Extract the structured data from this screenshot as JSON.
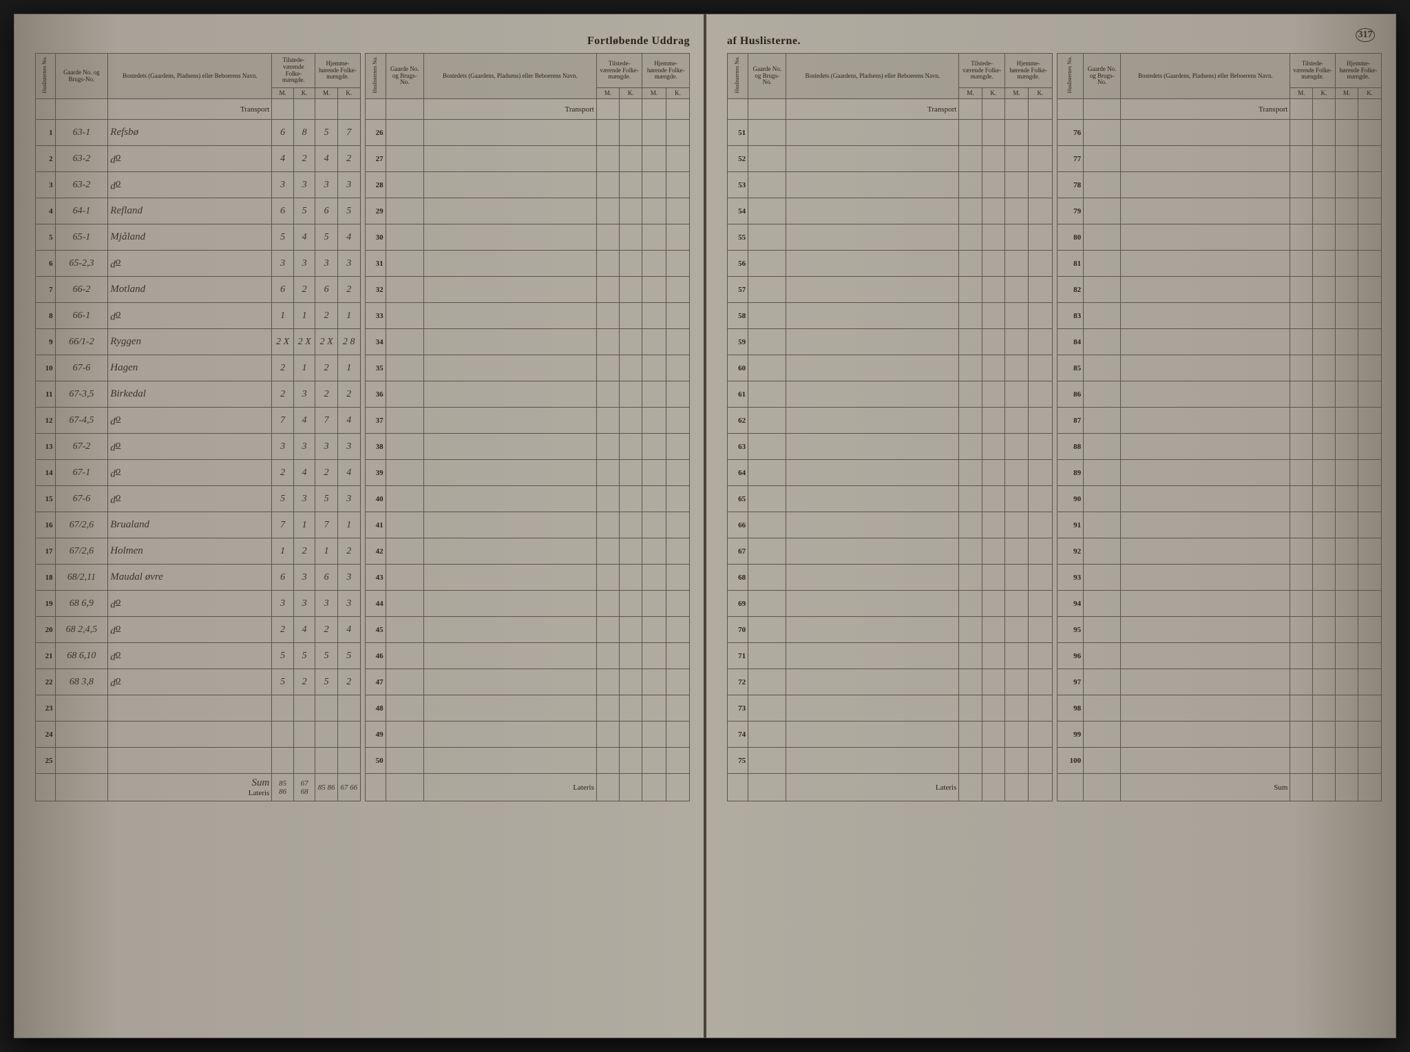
{
  "title_left": "Fortløbende Uddrag",
  "title_right": "af Huslisterne.",
  "page_number": "317",
  "headers": {
    "huslisternes": "Huslisternes No.",
    "gaarde": "Gaarde No. og Brugs-No.",
    "bosted": "Bostedets (Gaardens, Pladsens) eller Beboerens Navn.",
    "tilstede": "Tilstede-værende Folke-mængde.",
    "hjemme": "Hjemme-hørende Folke-mængde.",
    "m": "M.",
    "k": "K.",
    "transport": "Transport",
    "lateris": "Lateris",
    "sum": "Sum",
    "sum_hand": "Sum"
  },
  "left_block_a": {
    "rows": [
      {
        "n": "1",
        "g": "63-1",
        "name": "Refsbø",
        "tm": "6",
        "tk": "8",
        "hm": "5",
        "hk": "7"
      },
      {
        "n": "2",
        "g": "63-2",
        "name": "do",
        "tm": "4",
        "tk": "2",
        "hm": "4",
        "hk": "2"
      },
      {
        "n": "3",
        "g": "63-2",
        "name": "do",
        "tm": "3",
        "tk": "3",
        "hm": "3",
        "hk": "3"
      },
      {
        "n": "4",
        "g": "64-1",
        "name": "Refland",
        "tm": "6",
        "tk": "5",
        "hm": "6",
        "hk": "5"
      },
      {
        "n": "5",
        "g": "65-1",
        "name": "Mjåland",
        "tm": "5",
        "tk": "4",
        "hm": "5",
        "hk": "4"
      },
      {
        "n": "6",
        "g": "65-2,3",
        "name": "do",
        "tm": "3",
        "tk": "3",
        "hm": "3",
        "hk": "3"
      },
      {
        "n": "7",
        "g": "66-2",
        "name": "Motland",
        "tm": "6",
        "tk": "2",
        "hm": "6",
        "hk": "2"
      },
      {
        "n": "8",
        "g": "66-1",
        "name": "do",
        "tm": "1",
        "tk": "1",
        "hm": "2",
        "hk": "1"
      },
      {
        "n": "9",
        "g": "66/1-2",
        "name": "Ryggen",
        "tm": "2 X",
        "tk": "2 X",
        "hm": "2 X",
        "hk": "2 8"
      },
      {
        "n": "10",
        "g": "67-6",
        "name": "Hagen",
        "tm": "2",
        "tk": "1",
        "hm": "2",
        "hk": "1"
      },
      {
        "n": "11",
        "g": "67-3,5",
        "name": "Birkedal",
        "tm": "2",
        "tk": "3",
        "hm": "2",
        "hk": "2"
      },
      {
        "n": "12",
        "g": "67-4,5",
        "name": "do",
        "tm": "7",
        "tk": "4",
        "hm": "7",
        "hk": "4"
      },
      {
        "n": "13",
        "g": "67-2",
        "name": "do",
        "tm": "3",
        "tk": "3",
        "hm": "3",
        "hk": "3"
      },
      {
        "n": "14",
        "g": "67-1",
        "name": "do",
        "tm": "2",
        "tk": "4",
        "hm": "2",
        "hk": "4"
      },
      {
        "n": "15",
        "g": "67-6",
        "name": "do",
        "tm": "5",
        "tk": "3",
        "hm": "5",
        "hk": "3"
      },
      {
        "n": "16",
        "g": "67/2,6",
        "name": "Brualand",
        "tm": "7",
        "tk": "1",
        "hm": "7",
        "hk": "1"
      },
      {
        "n": "17",
        "g": "67/2,6",
        "name": "Holmen",
        "tm": "1",
        "tk": "2",
        "hm": "1",
        "hk": "2"
      },
      {
        "n": "18",
        "g": "68/2,11",
        "name": "Maudal øvre",
        "tm": "6",
        "tk": "3",
        "hm": "6",
        "hk": "3"
      },
      {
        "n": "19",
        "g": "68 6,9",
        "name": "do",
        "tm": "3",
        "tk": "3",
        "hm": "3",
        "hk": "3"
      },
      {
        "n": "20",
        "g": "68 2,4,5",
        "name": "do",
        "tm": "2",
        "tk": "4",
        "hm": "2",
        "hk": "4"
      },
      {
        "n": "21",
        "g": "68 6,10",
        "name": "do",
        "tm": "5",
        "tk": "5",
        "hm": "5",
        "hk": "5"
      },
      {
        "n": "22",
        "g": "68 3,8",
        "name": "do",
        "tm": "5",
        "tk": "2",
        "hm": "5",
        "hk": "2"
      },
      {
        "n": "23",
        "g": "",
        "name": "",
        "tm": "",
        "tk": "",
        "hm": "",
        "hk": ""
      },
      {
        "n": "24",
        "g": "",
        "name": "",
        "tm": "",
        "tk": "",
        "hm": "",
        "hk": ""
      },
      {
        "n": "25",
        "g": "",
        "name": "",
        "tm": "",
        "tk": "",
        "hm": "",
        "hk": ""
      }
    ],
    "lateris": {
      "tm": "85 86",
      "tk": "67 68",
      "hm": "85 86",
      "hk": "67 66"
    }
  },
  "left_block_b": {
    "start": 26,
    "end": 50
  },
  "right_block_a": {
    "start": 51,
    "end": 75
  },
  "right_block_b": {
    "start": 76,
    "end": 100
  },
  "colors": {
    "paper": "#a8a298",
    "ink": "#2a2418",
    "rule": "#5a5448",
    "handwriting": "#3a3428",
    "background": "#1a1a1a"
  },
  "fonts": {
    "print_size_pt": 9,
    "header_size_pt": 16,
    "handwriting_size_pt": 15
  }
}
